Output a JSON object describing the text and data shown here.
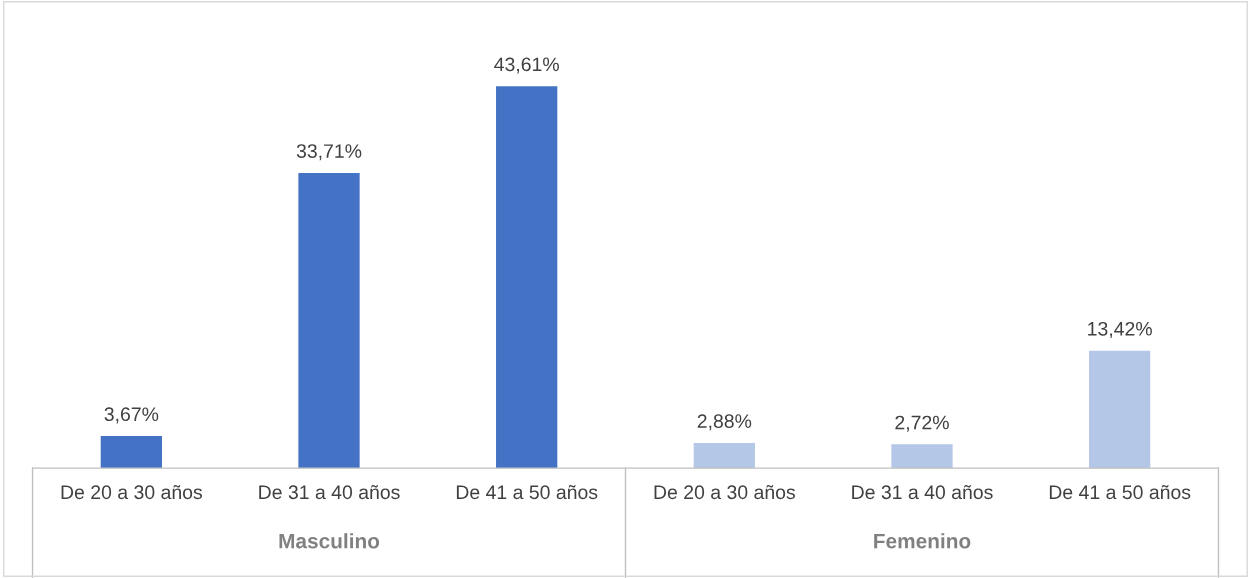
{
  "chart_data": {
    "type": "bar",
    "categories": [
      "De 20 a 30 años",
      "De 31 a 40 años",
      "De 41 a 50 años",
      "De 20 a 30 años",
      "De 31 a 40 años",
      "De 41 a 50 años"
    ],
    "values": [
      3.67,
      33.71,
      43.61,
      2.88,
      2.72,
      13.42
    ],
    "colors": [
      "#4472c4",
      "#4472c4",
      "#4472c4",
      "#b4c7e7",
      "#b4c7e7",
      "#b4c7e7"
    ],
    "value_labels": [
      "3,67%",
      "33,71%",
      "43,61%",
      "2,88%",
      "2,72%",
      "13,42%"
    ],
    "annotations": [
      "Masculino",
      "Femenino"
    ],
    "grid": false,
    "legend": false
  }
}
